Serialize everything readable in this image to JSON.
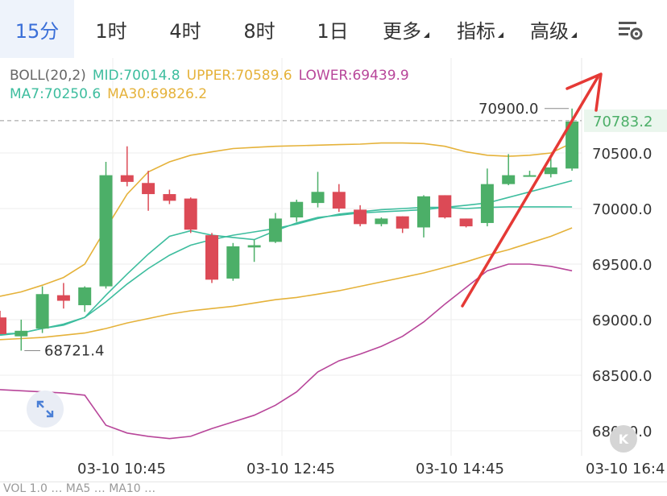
{
  "tabs": [
    {
      "label": "15分",
      "active": true
    },
    {
      "label": "1时",
      "active": false
    },
    {
      "label": "4时",
      "active": false
    },
    {
      "label": "8时",
      "active": false
    },
    {
      "label": "1日",
      "active": false
    },
    {
      "label": "更多",
      "active": false,
      "dropdown": true
    },
    {
      "label": "指标",
      "active": false,
      "dropdown": true
    },
    {
      "label": "高级",
      "active": false,
      "dropdown": true
    }
  ],
  "settings_icon": "chart-settings-icon",
  "legend": {
    "boll": {
      "name": "BOLL(20,2)",
      "mid": "MID:70014.8",
      "upper": "UPPER:70589.6",
      "lower": "LOWER:69439.9"
    },
    "ma": {
      "ma7": "MA7:70250.6",
      "ma30": "MA30:69826.2"
    }
  },
  "colors": {
    "up": "#4caf68",
    "down": "#dc4a56",
    "boll_mid": "#3dbd9e",
    "boll_upper": "#e5b23a",
    "boll_lower": "#b8469a",
    "ma7": "#3dbd9e",
    "ma30": "#e5b23a",
    "arrow": "#e53935",
    "price_tag": "#4caf68",
    "axis_text": "#333333",
    "grid": "#eeeeee"
  },
  "price_axis": {
    "labels": [
      "70500.0",
      "70000.0",
      "69500.0",
      "69000.0",
      "68500.0",
      "68000.0"
    ],
    "current_price": "70783.2"
  },
  "annotations": {
    "high": "70900.0",
    "low": "68721.4"
  },
  "time_axis": [
    "03-10 10:45",
    "03-10 12:45",
    "03-10 14:45",
    "03-10 16:4"
  ],
  "volume_strip_text": "VOL 1.0 … MA5 … MA10 …",
  "chart_data": {
    "type": "candlestick",
    "y_unit": "price",
    "ylim": [
      67800,
      71200
    ],
    "candles": [
      {
        "o": 69020,
        "h": 69080,
        "l": 68870,
        "c": 68870
      },
      {
        "o": 68850,
        "h": 69000,
        "l": 68721.4,
        "c": 68900
      },
      {
        "o": 68920,
        "h": 69300,
        "l": 68880,
        "c": 69230
      },
      {
        "o": 69220,
        "h": 69330,
        "l": 69100,
        "c": 69170
      },
      {
        "o": 69130,
        "h": 69300,
        "l": 69070,
        "c": 69290
      },
      {
        "o": 69300,
        "h": 70420,
        "l": 69280,
        "c": 70300
      },
      {
        "o": 70300,
        "h": 70560,
        "l": 70200,
        "c": 70240
      },
      {
        "o": 70230,
        "h": 70340,
        "l": 69980,
        "c": 70130
      },
      {
        "o": 70130,
        "h": 70170,
        "l": 70040,
        "c": 70070
      },
      {
        "o": 70090,
        "h": 70100,
        "l": 69780,
        "c": 69810
      },
      {
        "o": 69760,
        "h": 69780,
        "l": 69330,
        "c": 69360
      },
      {
        "o": 69370,
        "h": 69690,
        "l": 69350,
        "c": 69660
      },
      {
        "o": 69650,
        "h": 69720,
        "l": 69520,
        "c": 69670
      },
      {
        "o": 69700,
        "h": 69960,
        "l": 69690,
        "c": 69910
      },
      {
        "o": 69920,
        "h": 70080,
        "l": 69880,
        "c": 70060
      },
      {
        "o": 70050,
        "h": 70330,
        "l": 70010,
        "c": 70150
      },
      {
        "o": 70150,
        "h": 70220,
        "l": 69970,
        "c": 70000
      },
      {
        "o": 69990,
        "h": 70030,
        "l": 69840,
        "c": 69860
      },
      {
        "o": 69860,
        "h": 69920,
        "l": 69840,
        "c": 69910
      },
      {
        "o": 69930,
        "h": 69930,
        "l": 69780,
        "c": 69820
      },
      {
        "o": 69830,
        "h": 70120,
        "l": 69740,
        "c": 70110
      },
      {
        "o": 70120,
        "h": 70120,
        "l": 69910,
        "c": 69920
      },
      {
        "o": 69910,
        "h": 69910,
        "l": 69830,
        "c": 69840
      },
      {
        "o": 69870,
        "h": 70360,
        "l": 69840,
        "c": 70220
      },
      {
        "o": 70220,
        "h": 70490,
        "l": 70210,
        "c": 70300
      },
      {
        "o": 70300,
        "h": 70340,
        "l": 70290,
        "c": 70300
      },
      {
        "o": 70310,
        "h": 70480,
        "l": 70280,
        "c": 70370
      },
      {
        "o": 70360,
        "h": 70900,
        "l": 70340,
        "c": 70783.2
      }
    ],
    "boll_upper": [
      69210,
      69250,
      69310,
      69380,
      69500,
      69820,
      70130,
      70330,
      70420,
      70480,
      70510,
      70540,
      70550,
      70560,
      70565,
      70570,
      70575,
      70580,
      70590,
      70590,
      70585,
      70560,
      70510,
      70480,
      70470,
      70480,
      70500,
      70589.6
    ],
    "boll_mid": [
      68870,
      68880,
      68920,
      68950,
      69020,
      69160,
      69320,
      69460,
      69580,
      69670,
      69720,
      69760,
      69790,
      69820,
      69860,
      69910,
      69950,
      69970,
      69990,
      70000,
      70010,
      70010,
      70000,
      70010,
      70015,
      70015,
      70015,
      70014.8
    ],
    "boll_lower": [
      68370,
      68360,
      68350,
      68340,
      68320,
      68050,
      67980,
      67950,
      67930,
      67950,
      68020,
      68080,
      68140,
      68230,
      68350,
      68530,
      68630,
      68690,
      68760,
      68850,
      68980,
      69140,
      69290,
      69440,
      69500,
      69500,
      69480,
      69439.9
    ],
    "ma7": [
      68860,
      68880,
      68920,
      68960,
      69020,
      69220,
      69410,
      69590,
      69750,
      69800,
      69760,
      69740,
      69720,
      69800,
      69870,
      69920,
      69940,
      69960,
      69970,
      69980,
      69990,
      70010,
      70030,
      70050,
      70100,
      70150,
      70200,
      70250.6
    ],
    "ma30": [
      68820,
      68830,
      68840,
      68860,
      68880,
      68920,
      68970,
      69010,
      69050,
      69080,
      69100,
      69120,
      69150,
      69180,
      69200,
      69230,
      69260,
      69300,
      69340,
      69380,
      69420,
      69470,
      69520,
      69580,
      69630,
      69690,
      69750,
      69826.2
    ]
  }
}
